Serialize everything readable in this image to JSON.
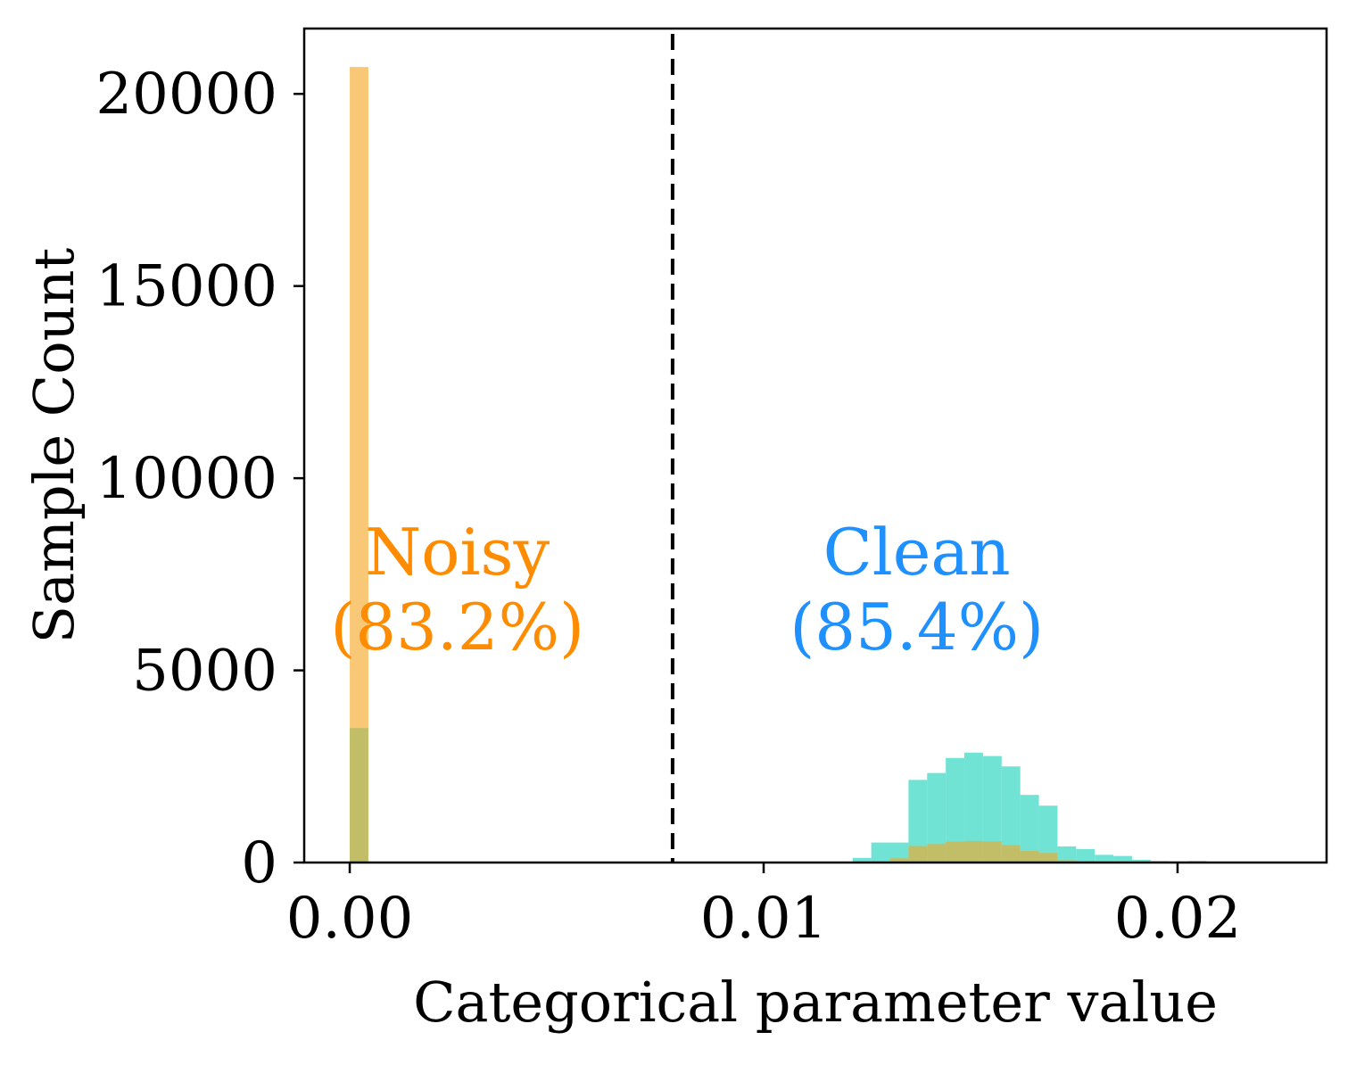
{
  "chart_data": {
    "type": "histogram",
    "title": "",
    "xlabel": "Categorical parameter value",
    "ylabel": "Sample Count",
    "xlim": [
      -0.0011,
      0.0236
    ],
    "ylim": [
      0,
      21700
    ],
    "xticks": [
      0.0,
      0.01,
      0.02
    ],
    "xtick_labels": [
      "0.00",
      "0.01",
      "0.02"
    ],
    "yticks": [
      0,
      5000,
      10000,
      15000,
      20000
    ],
    "ytick_labels": [
      "0",
      "5000",
      "10000",
      "15000",
      "20000"
    ],
    "grid": false,
    "legend": "none",
    "threshold": 0.0078,
    "bin_width": 0.00045,
    "series": [
      {
        "color": "#40D9C6",
        "opacity": 0.75,
        "bins": [
          {
            "x0": 0.0,
            "count": 3500
          },
          {
            "x0": 0.01215,
            "count": 120
          },
          {
            "x0": 0.0126,
            "count": 520
          },
          {
            "x0": 0.01305,
            "count": 520
          },
          {
            "x0": 0.0135,
            "count": 2150
          },
          {
            "x0": 0.01395,
            "count": 2330
          },
          {
            "x0": 0.0144,
            "count": 2720
          },
          {
            "x0": 0.01485,
            "count": 2860
          },
          {
            "x0": 0.0153,
            "count": 2770
          },
          {
            "x0": 0.01575,
            "count": 2500
          },
          {
            "x0": 0.0162,
            "count": 1760
          },
          {
            "x0": 0.01665,
            "count": 1480
          },
          {
            "x0": 0.0171,
            "count": 420
          },
          {
            "x0": 0.01755,
            "count": 350
          },
          {
            "x0": 0.018,
            "count": 200
          },
          {
            "x0": 0.01845,
            "count": 170
          },
          {
            "x0": 0.0189,
            "count": 70
          },
          {
            "x0": 0.01935,
            "count": 40
          },
          {
            "x0": 0.0198,
            "count": 30
          },
          {
            "x0": 0.02025,
            "count": 40
          }
        ]
      },
      {
        "color": "#F5A623",
        "opacity": 0.62,
        "bins": [
          {
            "x0": 0.0,
            "count": 20700
          },
          {
            "x0": 0.01305,
            "count": 110
          },
          {
            "x0": 0.0135,
            "count": 430
          },
          {
            "x0": 0.01395,
            "count": 480
          },
          {
            "x0": 0.0144,
            "count": 540
          },
          {
            "x0": 0.01485,
            "count": 560
          },
          {
            "x0": 0.0153,
            "count": 550
          },
          {
            "x0": 0.01575,
            "count": 450
          },
          {
            "x0": 0.0162,
            "count": 300
          },
          {
            "x0": 0.01665,
            "count": 250
          },
          {
            "x0": 0.0171,
            "count": 60
          },
          {
            "x0": 0.01755,
            "count": 40
          }
        ]
      }
    ],
    "annotations": [
      {
        "text": "Noisy",
        "x": 0.0026,
        "y": 7500,
        "color": "#FF8C00"
      },
      {
        "text": "(83.2%)",
        "x": 0.0026,
        "y": 5550,
        "color": "#FF8C00"
      },
      {
        "text": "Clean",
        "x": 0.0137,
        "y": 7500,
        "color": "#1E90FF"
      },
      {
        "text": "(85.4%)",
        "x": 0.0137,
        "y": 5550,
        "color": "#1E90FF"
      }
    ]
  }
}
